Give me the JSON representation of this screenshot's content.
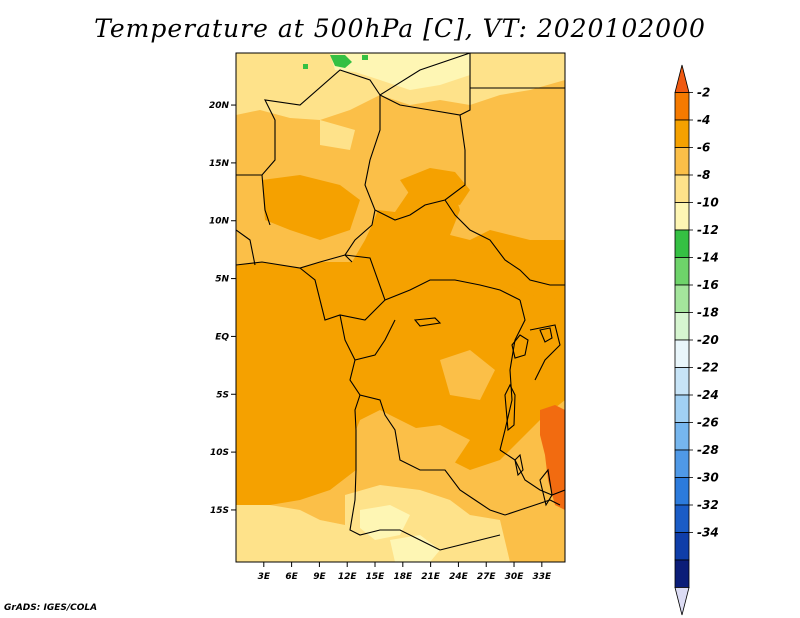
{
  "title": "Temperature at 500hPa [C], VT: 2020102000",
  "credit": "GrADS: IGES/COLA",
  "map": {
    "lon_range": [
      0,
      35.5
    ],
    "lat_range": [
      -19.5,
      24.5
    ],
    "lat_ticks": [
      {
        "label": "20N",
        "value": 20
      },
      {
        "label": "15N",
        "value": 15
      },
      {
        "label": "10N",
        "value": 10
      },
      {
        "label": "5N",
        "value": 5
      },
      {
        "label": "EQ",
        "value": 0
      },
      {
        "label": "5S",
        "value": -5
      },
      {
        "label": "10S",
        "value": -10
      },
      {
        "label": "15S",
        "value": -15
      }
    ],
    "lon_ticks": [
      {
        "label": "3E",
        "value": 3
      },
      {
        "label": "6E",
        "value": 6
      },
      {
        "label": "9E",
        "value": 9
      },
      {
        "label": "12E",
        "value": 12
      },
      {
        "label": "15E",
        "value": 15
      },
      {
        "label": "18E",
        "value": 18
      },
      {
        "label": "21E",
        "value": 21
      },
      {
        "label": "24E",
        "value": 24
      },
      {
        "label": "27E",
        "value": 27
      },
      {
        "label": "30E",
        "value": 30
      },
      {
        "label": "33E",
        "value": 33
      }
    ],
    "field_colors": {
      "lt_-12": "#35c043",
      "-12_-10": "#fef6b4",
      "-10_-8": "#fee28a",
      "-8_-6": "#fbbf48",
      "-6_-4": "#f5a100",
      "-4_-2": "#f26b10"
    }
  },
  "colorbar": {
    "labels": [
      "-2",
      "-4",
      "-6",
      "-8",
      "-10",
      "-12",
      "-14",
      "-16",
      "-18",
      "-20",
      "-22",
      "-24",
      "-26",
      "-28",
      "-30",
      "-32",
      "-34"
    ],
    "colors": [
      "#ef5a12",
      "#f57a00",
      "#f5a100",
      "#fbbf48",
      "#fee28a",
      "#fef6b4",
      "#35c043",
      "#6ed36a",
      "#a4e59c",
      "#d6f5d0",
      "#e9f6fb",
      "#c7e4f7",
      "#a1d0f3",
      "#76b6ee",
      "#4f99e7",
      "#2c7bdc",
      "#1a5cc6",
      "#0f3ea9",
      "#0b1d78",
      "#dcdcf4"
    ]
  }
}
